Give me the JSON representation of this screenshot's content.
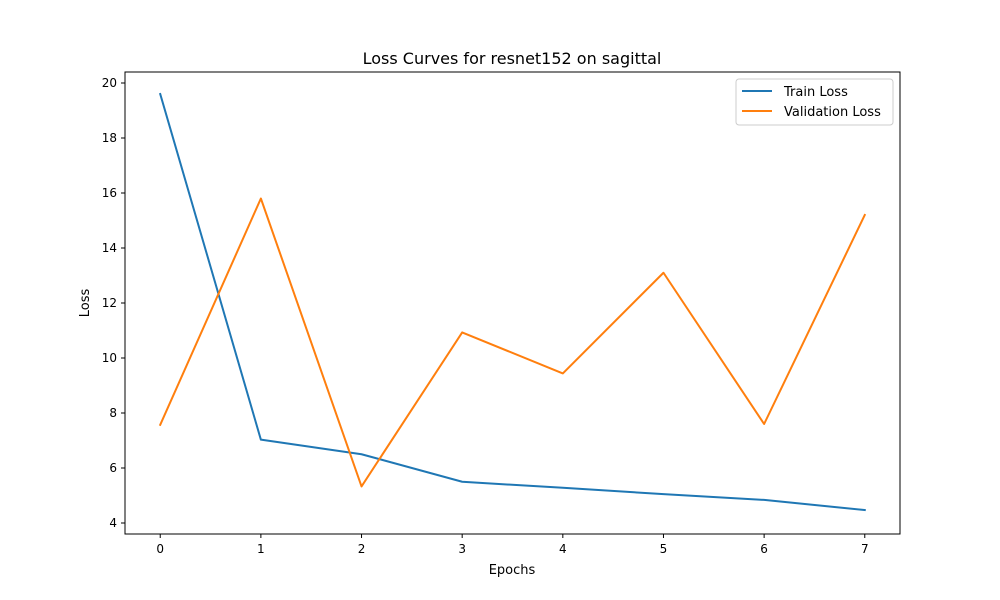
{
  "chart_data": {
    "type": "line",
    "title": "Loss Curves for resnet152 on sagittal",
    "xlabel": "Epochs",
    "ylabel": "Loss",
    "x": [
      0,
      1,
      2,
      3,
      4,
      5,
      6,
      7
    ],
    "xticks": [
      "0",
      "1",
      "2",
      "3",
      "4",
      "5",
      "6",
      "7"
    ],
    "yticks": [
      "4",
      "6",
      "8",
      "10",
      "12",
      "14",
      "16",
      "18",
      "20"
    ],
    "xlim": [
      -0.35,
      7.35
    ],
    "ylim": [
      3.6,
      20.4
    ],
    "grid": false,
    "legend_position": "top-right",
    "series": [
      {
        "name": "Train Loss",
        "color": "#1f77b4",
        "values": [
          19.6,
          7.03,
          6.5,
          5.5,
          5.28,
          5.05,
          4.84,
          4.47
        ]
      },
      {
        "name": "Validation Loss",
        "color": "#ff7f0e",
        "values": [
          7.57,
          15.8,
          5.33,
          10.93,
          9.44,
          13.1,
          7.6,
          15.2
        ]
      }
    ]
  }
}
